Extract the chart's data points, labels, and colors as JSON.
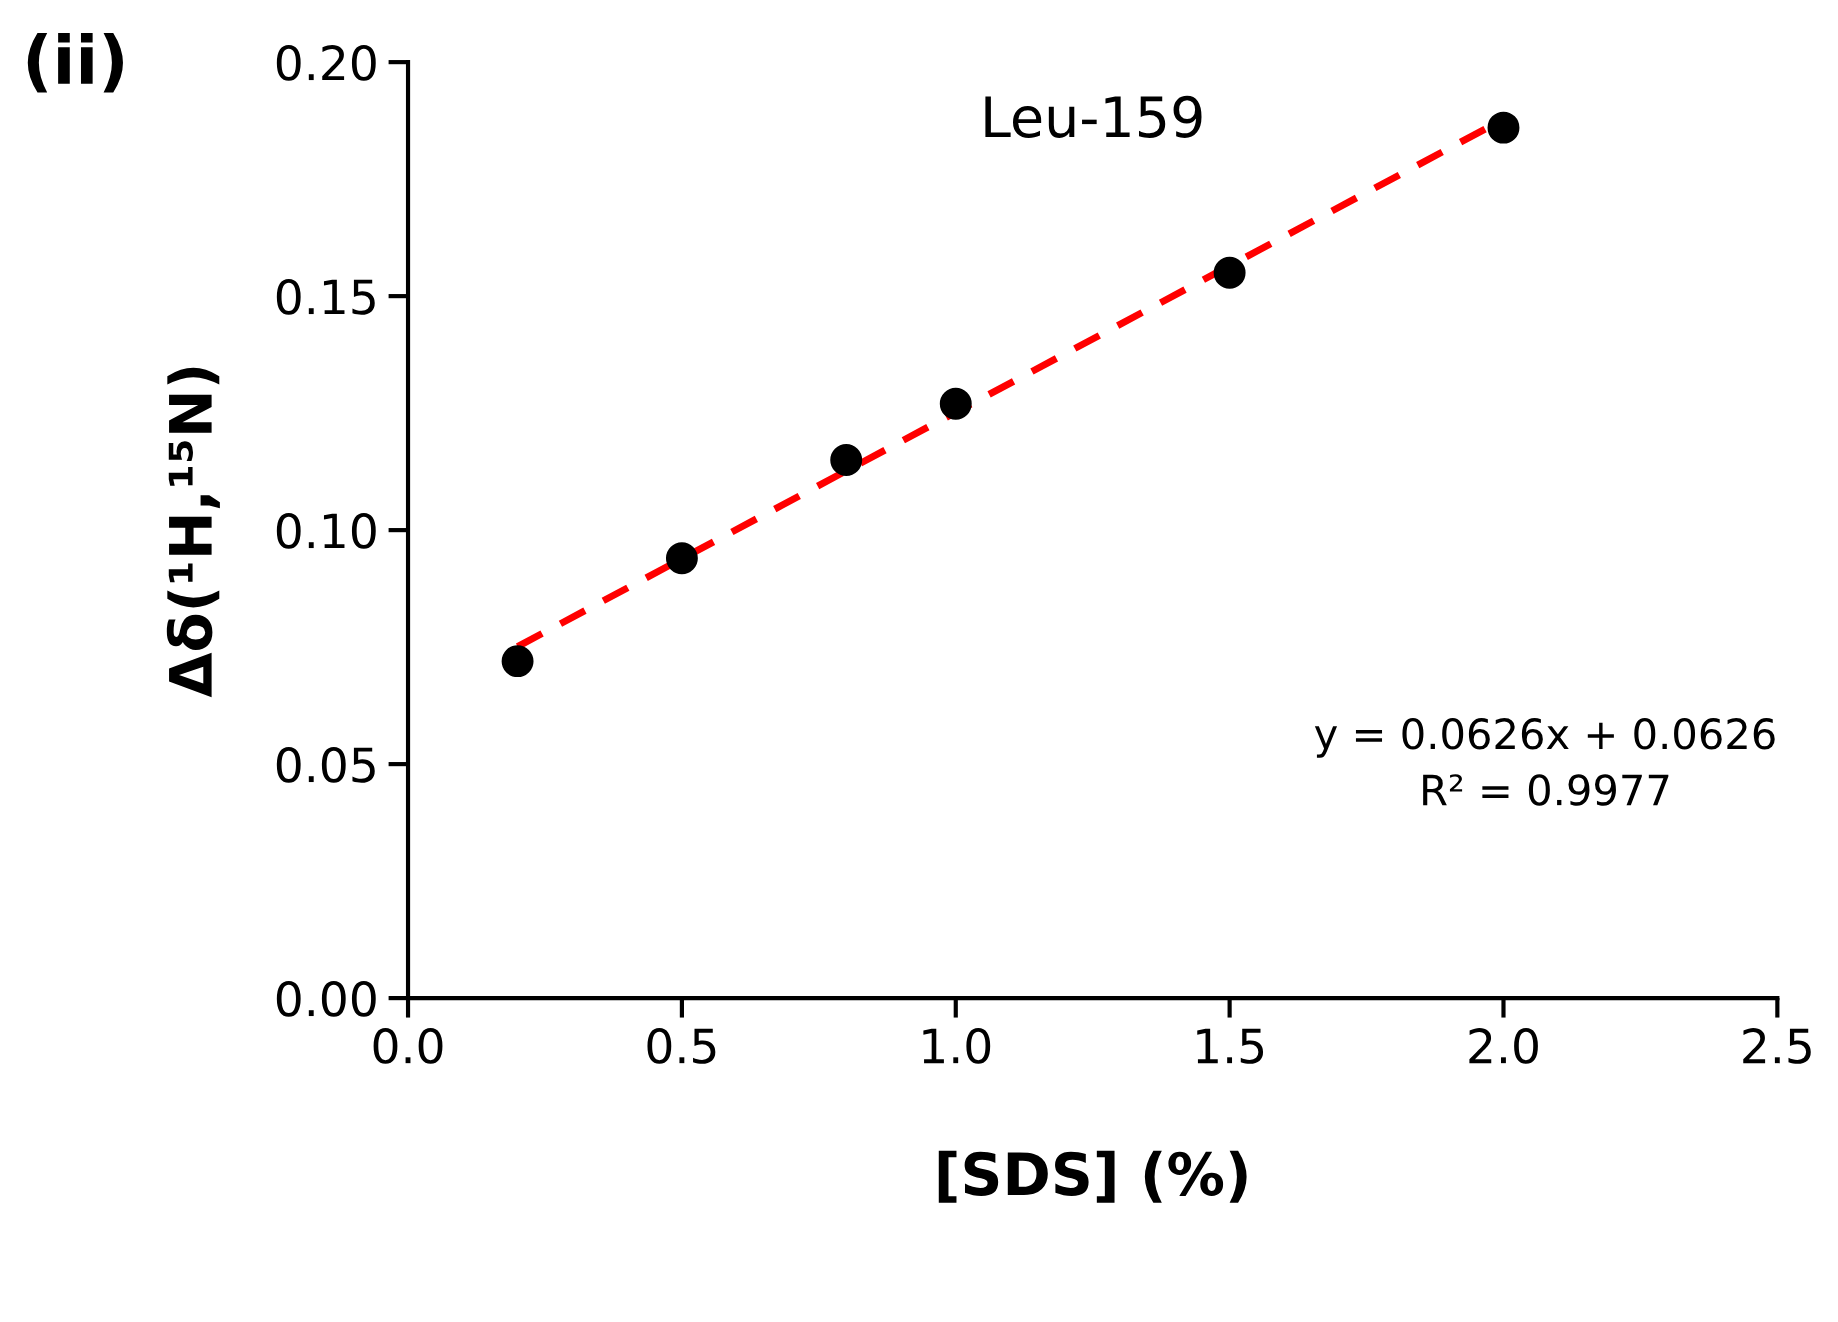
{
  "chart_data": {
    "type": "scatter",
    "title": "Leu-159",
    "xlabel": "[SDS] (%)",
    "ylabel": "Δδ(¹H,¹⁵N)",
    "series": [
      {
        "color": "#000000",
        "marker": "circle",
        "x": [
          0.2,
          0.5,
          0.8,
          1.0,
          1.5,
          2.0
        ],
        "values": [
          0.072,
          0.094,
          0.115,
          0.127,
          0.155,
          0.186
        ]
      },
      {
        "type": "line",
        "color": "#ff0000",
        "line_style": "dashed",
        "marker": "none",
        "x": [
          0.2,
          2.0
        ],
        "values": [
          0.0751,
          0.1878
        ]
      }
    ],
    "xlim": [
      0.0,
      2.5
    ],
    "xticks": [
      {
        "value": 0,
        "label": "0.0"
      },
      {
        "value": 0.5,
        "label": "0.5"
      },
      {
        "value": 1,
        "label": "1.0"
      },
      {
        "value": 1.5,
        "label": "1.5"
      },
      {
        "value": 2,
        "label": "2.0"
      },
      {
        "value": 2.5,
        "label": "2.5"
      }
    ],
    "ylim": [
      0.0,
      0.2
    ],
    "yticks": [
      {
        "value": 0,
        "label": "0.00"
      },
      {
        "value": 0.05,
        "label": "0.05"
      },
      {
        "value": 0.1,
        "label": "0.10"
      },
      {
        "value": 0.15,
        "label": "0.15"
      },
      {
        "value": 0.2,
        "label": "0.20"
      }
    ],
    "grid": false,
    "legend": false,
    "annotations": [
      "(ii)",
      "y = 0.0626x + 0.0626\nR² = 0.9977"
    ]
  }
}
